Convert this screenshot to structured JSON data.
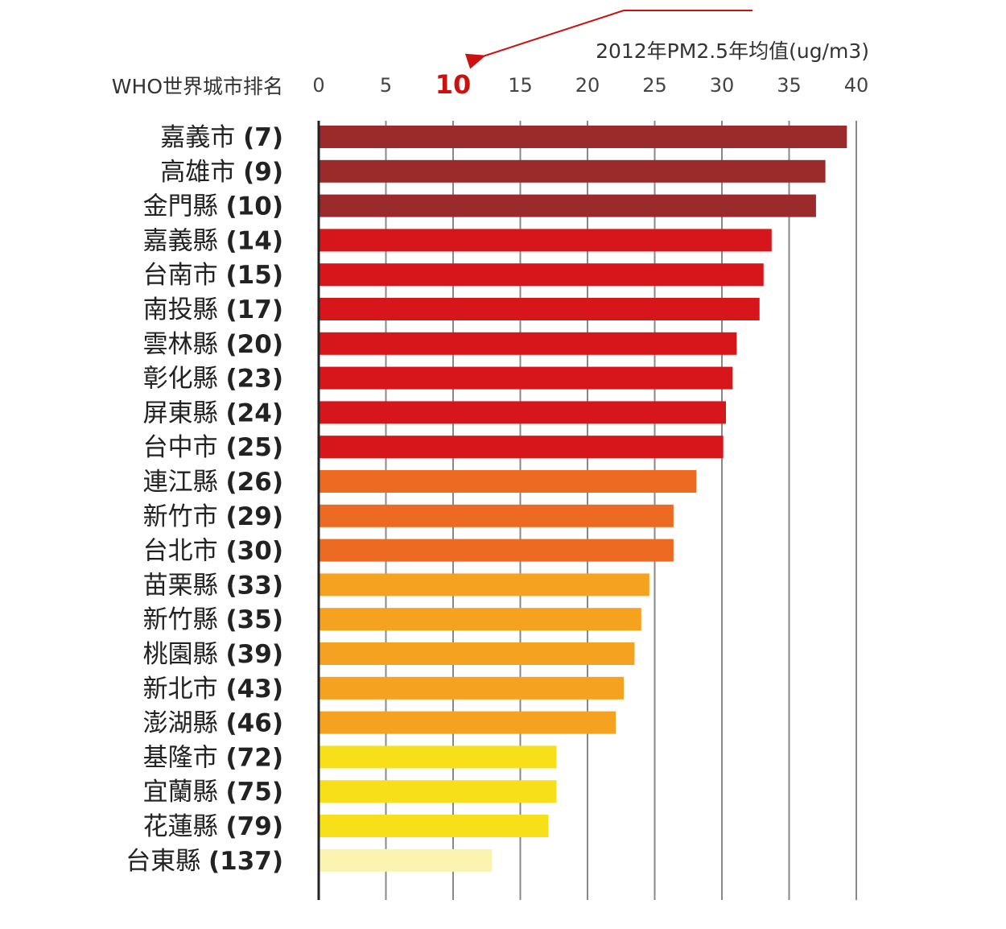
{
  "chart_data": {
    "type": "bar",
    "orientation": "horizontal",
    "title": "2012年PM2.5年均值(ug/m3)",
    "category_header": "WHO世界城市排名",
    "xlim": [
      0,
      40
    ],
    "xticks": [
      0,
      5,
      10,
      15,
      20,
      25,
      30,
      35,
      40
    ],
    "highlight_tick": 10,
    "grid": true,
    "categories": [
      {
        "name": "嘉義市",
        "rank": "(7)",
        "value": 39.3,
        "color": "#9b2a2a"
      },
      {
        "name": "高雄市",
        "rank": "(9)",
        "value": 37.7,
        "color": "#9b2a2a"
      },
      {
        "name": "金門縣",
        "rank": "(10)",
        "value": 37.0,
        "color": "#9b2a2a"
      },
      {
        "name": "嘉義縣",
        "rank": "(14)",
        "value": 33.7,
        "color": "#d7161b"
      },
      {
        "name": "台南市",
        "rank": "(15)",
        "value": 33.1,
        "color": "#d7161b"
      },
      {
        "name": "南投縣",
        "rank": "(17)",
        "value": 32.8,
        "color": "#d7161b"
      },
      {
        "name": "雲林縣",
        "rank": "(20)",
        "value": 31.1,
        "color": "#d7161b"
      },
      {
        "name": "彰化縣",
        "rank": "(23)",
        "value": 30.8,
        "color": "#d7161b"
      },
      {
        "name": "屏東縣",
        "rank": "(24)",
        "value": 30.3,
        "color": "#d7161b"
      },
      {
        "name": "台中市",
        "rank": "(25)",
        "value": 30.1,
        "color": "#d7161b"
      },
      {
        "name": "連江縣",
        "rank": "(26)",
        "value": 28.1,
        "color": "#ec6a22"
      },
      {
        "name": "新竹市",
        "rank": "(29)",
        "value": 26.4,
        "color": "#ec6a22"
      },
      {
        "name": "台北市",
        "rank": "(30)",
        "value": 26.4,
        "color": "#ec6a22"
      },
      {
        "name": "苗栗縣",
        "rank": "(33)",
        "value": 24.6,
        "color": "#f4a21f"
      },
      {
        "name": "新竹縣",
        "rank": "(35)",
        "value": 24.0,
        "color": "#f4a21f"
      },
      {
        "name": "桃園縣",
        "rank": "(39)",
        "value": 23.5,
        "color": "#f4a21f"
      },
      {
        "name": "新北市",
        "rank": "(43)",
        "value": 22.7,
        "color": "#f4a21f"
      },
      {
        "name": "澎湖縣",
        "rank": "(46)",
        "value": 22.1,
        "color": "#f4a21f"
      },
      {
        "name": "基隆市",
        "rank": "(72)",
        "value": 17.7,
        "color": "#f7e01a"
      },
      {
        "name": "宜蘭縣",
        "rank": "(75)",
        "value": 17.7,
        "color": "#f7e01a"
      },
      {
        "name": "花蓮縣",
        "rank": "(79)",
        "value": 17.1,
        "color": "#f7e01a"
      },
      {
        "name": "台東縣",
        "rank": "(137)",
        "value": 12.9,
        "color": "#fbf3b0"
      }
    ],
    "colors": {
      "gridline": "#888888",
      "axis": "#222222",
      "highlight": "#cc1111"
    }
  }
}
